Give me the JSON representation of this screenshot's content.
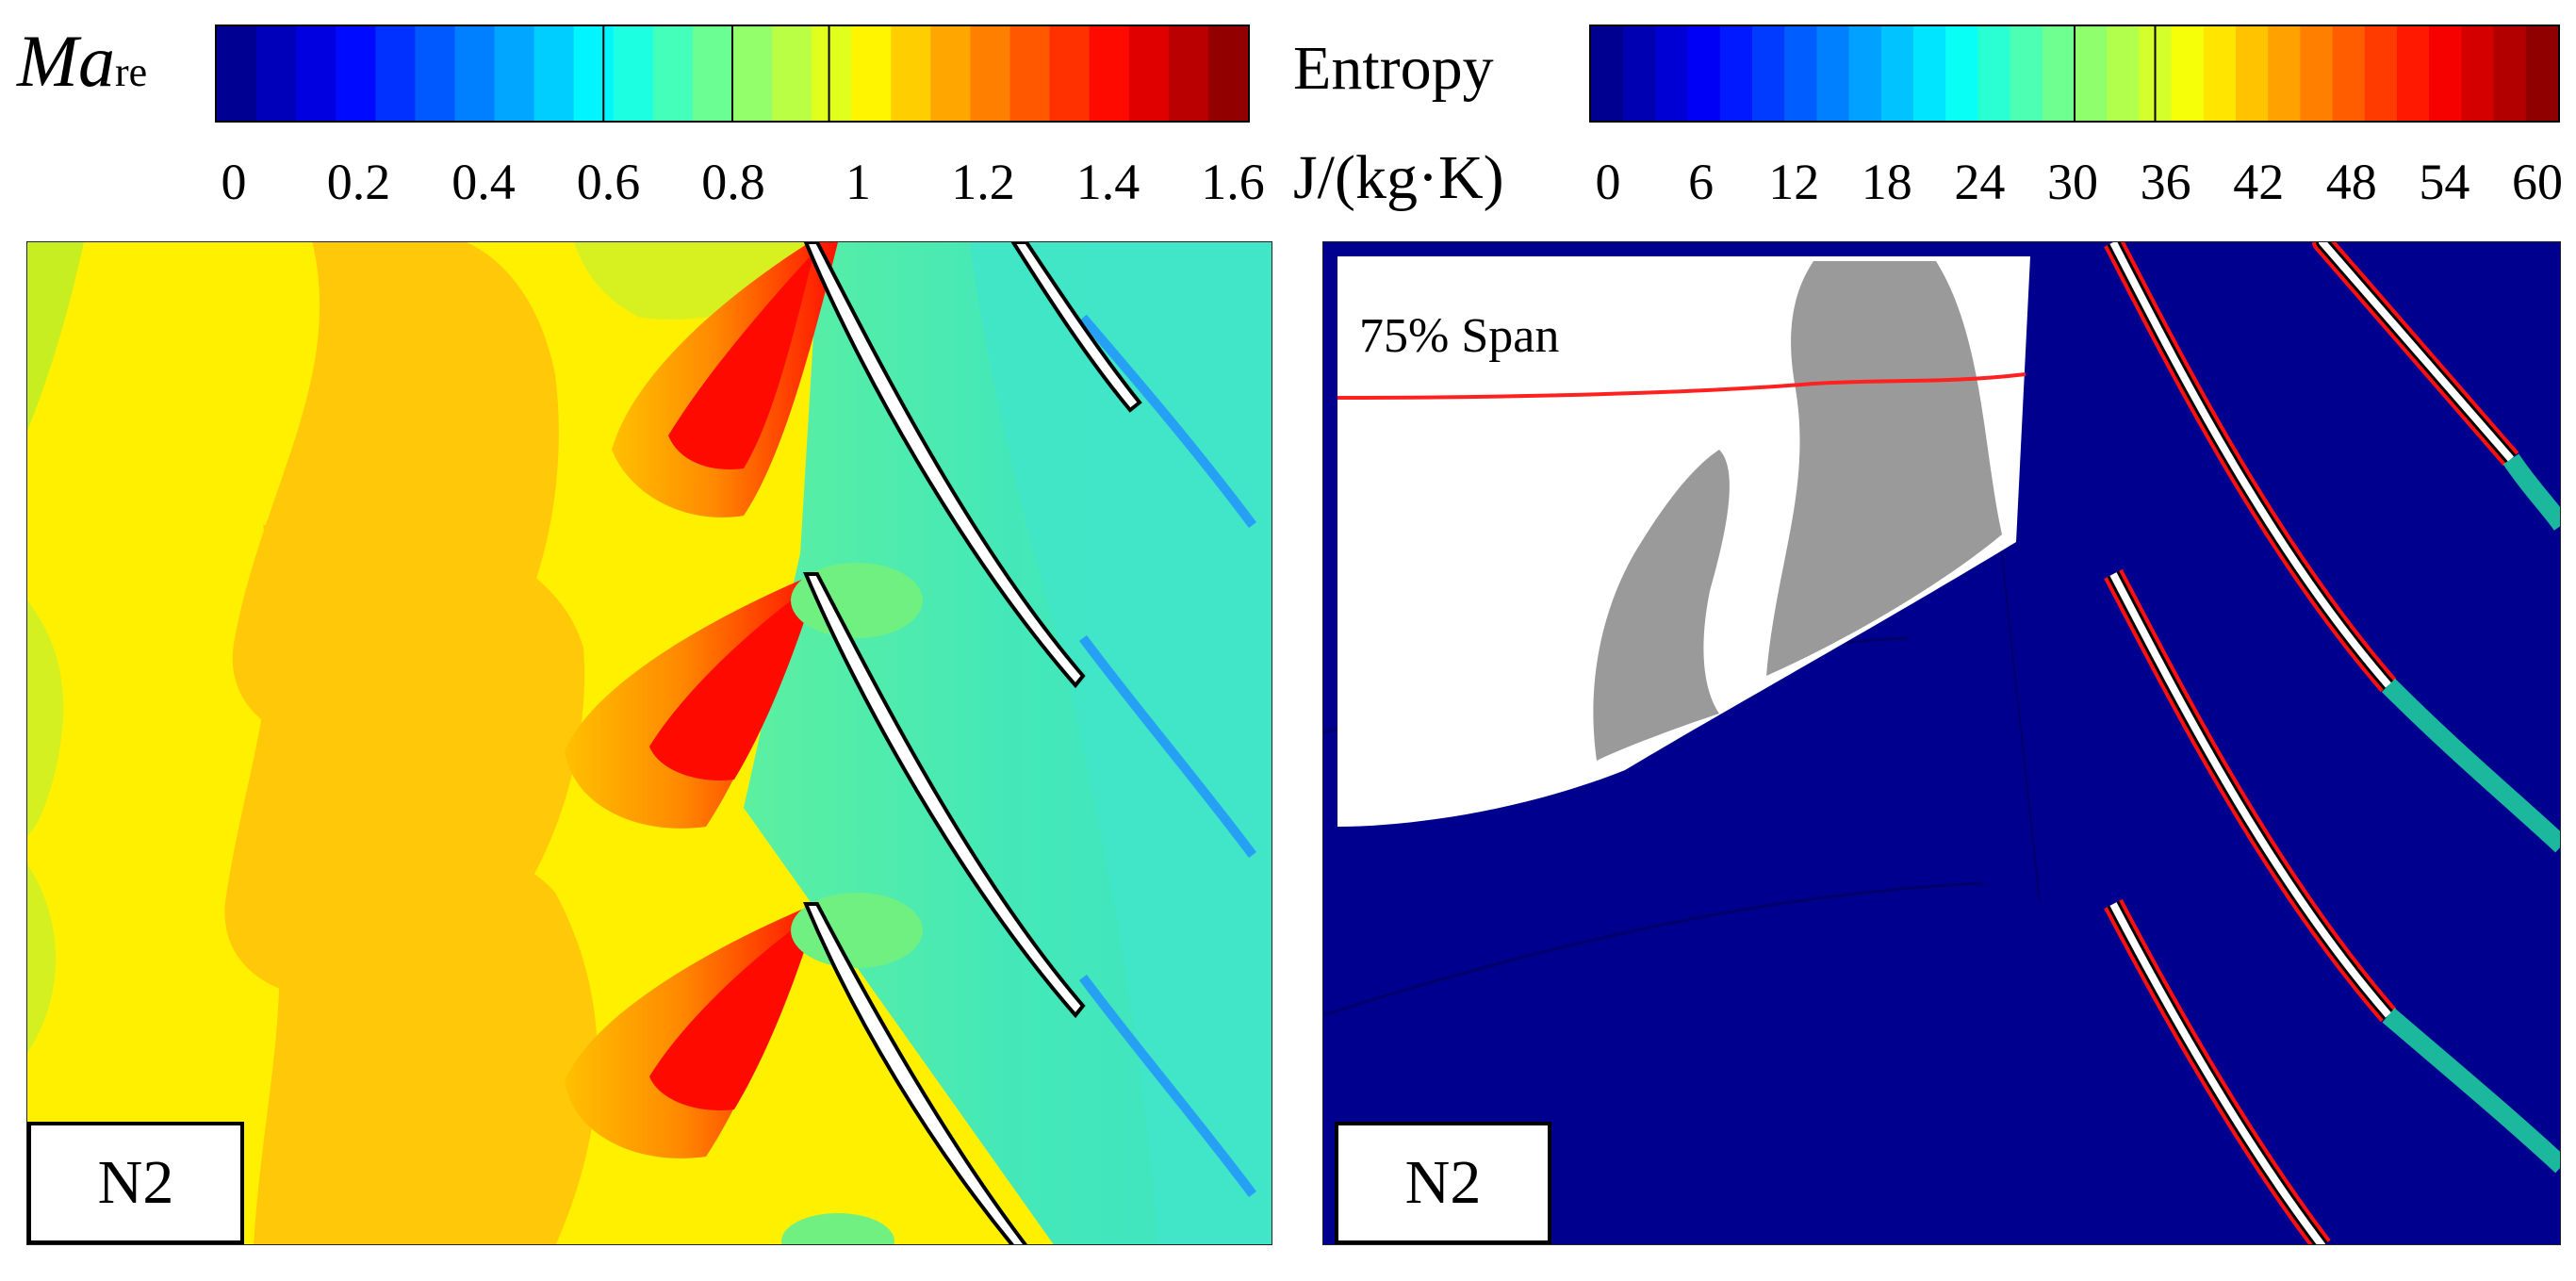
{
  "mach_colorbar": {
    "symbol": "Ma",
    "subscript": "re",
    "ticks": [
      "0",
      "0.2",
      "0.4",
      "0.6",
      "0.8",
      "1",
      "1.2",
      "1.4",
      "1.6"
    ],
    "range": [
      0,
      1.6
    ],
    "levels": 26,
    "highlight_levels": [
      0.6,
      0.8,
      0.95
    ]
  },
  "entropy_colorbar": {
    "title": "Entropy",
    "unit": "J/(kg·K)",
    "ticks": [
      "0",
      "6",
      "12",
      "18",
      "24",
      "30",
      "36",
      "42",
      "48",
      "54",
      "60"
    ],
    "range": [
      0,
      60
    ],
    "levels": 30,
    "highlight_levels": [
      30,
      35
    ]
  },
  "left_panel": {
    "case_label": "N2"
  },
  "right_panel": {
    "case_label": "N2",
    "inset_label": "75% Span"
  },
  "colors": {
    "jet_stops": [
      "#00007f",
      "#0000ff",
      "#007fff",
      "#00ffff",
      "#7fff7f",
      "#ffff00",
      "#ff7f00",
      "#ff0000",
      "#7f0000"
    ],
    "freestream": "#ffef00",
    "blade": "#ffffff",
    "entropy_background": "#00008f",
    "span_line": "#ff2020",
    "inset_blade": "#9a9a9a"
  }
}
